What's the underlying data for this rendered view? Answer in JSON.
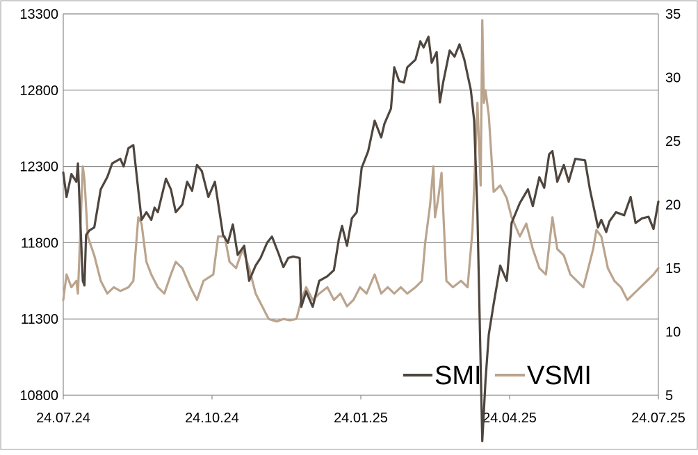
{
  "chart_data": {
    "type": "line",
    "title": "",
    "xlabel": "",
    "ylabel": "",
    "x_ticks": [
      "24.07.24",
      "24.10.24",
      "24.01.25",
      "24.04.25",
      "24.07.25"
    ],
    "x_range": [
      "2024-07-24",
      "2025-07-24"
    ],
    "y_left": {
      "range": [
        10800,
        13300
      ],
      "ticks": [
        "10800",
        "11300",
        "11800",
        "12300",
        "12800",
        "13300"
      ]
    },
    "y_right": {
      "range": [
        5,
        35
      ],
      "ticks": [
        "5",
        "10",
        "15",
        "20",
        "25",
        "30",
        "35"
      ]
    },
    "grid": true,
    "legend": "bottom-right",
    "colors": {
      "SMI": "#4e463e",
      "VSMI": "#bba48d"
    },
    "series": [
      {
        "name": "SMI",
        "axis": "left",
        "points": [
          [
            "2024-07-24",
            12260
          ],
          [
            "2024-07-26",
            12100
          ],
          [
            "2024-07-29",
            12250
          ],
          [
            "2024-08-01",
            12200
          ],
          [
            "2024-08-02",
            12320
          ],
          [
            "2024-08-05",
            11550
          ],
          [
            "2024-08-06",
            11520
          ],
          [
            "2024-08-07",
            11850
          ],
          [
            "2024-08-09",
            11880
          ],
          [
            "2024-08-12",
            11900
          ],
          [
            "2024-08-16",
            12150
          ],
          [
            "2024-08-20",
            12230
          ],
          [
            "2024-08-23",
            12320
          ],
          [
            "2024-08-28",
            12350
          ],
          [
            "2024-08-30",
            12300
          ],
          [
            "2024-09-02",
            12420
          ],
          [
            "2024-09-05",
            12440
          ],
          [
            "2024-09-10",
            11950
          ],
          [
            "2024-09-13",
            12000
          ],
          [
            "2024-09-16",
            11950
          ],
          [
            "2024-09-18",
            12030
          ],
          [
            "2024-09-20",
            12000
          ],
          [
            "2024-09-25",
            12220
          ],
          [
            "2024-09-28",
            12150
          ],
          [
            "2024-10-01",
            12000
          ],
          [
            "2024-10-05",
            12050
          ],
          [
            "2024-10-08",
            12200
          ],
          [
            "2024-10-11",
            12140
          ],
          [
            "2024-10-14",
            12310
          ],
          [
            "2024-10-17",
            12270
          ],
          [
            "2024-10-21",
            12100
          ],
          [
            "2024-10-25",
            12200
          ],
          [
            "2024-10-30",
            11850
          ],
          [
            "2024-11-02",
            11800
          ],
          [
            "2024-11-05",
            11920
          ],
          [
            "2024-11-08",
            11720
          ],
          [
            "2024-11-12",
            11780
          ],
          [
            "2024-11-15",
            11550
          ],
          [
            "2024-11-19",
            11650
          ],
          [
            "2024-11-22",
            11700
          ],
          [
            "2024-11-26",
            11800
          ],
          [
            "2024-11-29",
            11840
          ],
          [
            "2024-12-03",
            11730
          ],
          [
            "2024-12-06",
            11640
          ],
          [
            "2024-12-09",
            11700
          ],
          [
            "2024-12-12",
            11710
          ],
          [
            "2024-12-16",
            11700
          ],
          [
            "2024-12-17",
            11380
          ],
          [
            "2024-12-20",
            11480
          ],
          [
            "2024-12-24",
            11380
          ],
          [
            "2024-12-28",
            11550
          ],
          [
            "2025-01-02",
            11580
          ],
          [
            "2025-01-06",
            11620
          ],
          [
            "2025-01-09",
            11820
          ],
          [
            "2025-01-11",
            11910
          ],
          [
            "2025-01-14",
            11780
          ],
          [
            "2025-01-17",
            11960
          ],
          [
            "2025-01-20",
            12000
          ],
          [
            "2025-01-23",
            12290
          ],
          [
            "2025-01-27",
            12400
          ],
          [
            "2025-01-31",
            12600
          ],
          [
            "2025-02-04",
            12490
          ],
          [
            "2025-02-06",
            12580
          ],
          [
            "2025-02-10",
            12680
          ],
          [
            "2025-02-12",
            12950
          ],
          [
            "2025-02-15",
            12860
          ],
          [
            "2025-02-18",
            12850
          ],
          [
            "2025-02-20",
            12950
          ],
          [
            "2025-02-25",
            13000
          ],
          [
            "2025-02-28",
            13120
          ],
          [
            "2025-03-02",
            13080
          ],
          [
            "2025-03-05",
            13150
          ],
          [
            "2025-03-07",
            12980
          ],
          [
            "2025-03-10",
            13050
          ],
          [
            "2025-03-12",
            12720
          ],
          [
            "2025-03-14",
            12850
          ],
          [
            "2025-03-18",
            13060
          ],
          [
            "2025-03-21",
            13020
          ],
          [
            "2025-03-24",
            13100
          ],
          [
            "2025-03-27",
            13000
          ],
          [
            "2025-03-31",
            12800
          ],
          [
            "2025-04-02",
            12600
          ],
          [
            "2025-04-04",
            12000
          ],
          [
            "2025-04-07",
            10500
          ],
          [
            "2025-04-09",
            10900
          ],
          [
            "2025-04-11",
            11200
          ],
          [
            "2025-04-14",
            11400
          ],
          [
            "2025-04-18",
            11650
          ],
          [
            "2025-04-22",
            11550
          ],
          [
            "2025-04-25",
            11930
          ],
          [
            "2025-04-30",
            12060
          ],
          [
            "2025-05-05",
            12150
          ],
          [
            "2025-05-08",
            12040
          ],
          [
            "2025-05-12",
            12230
          ],
          [
            "2025-05-15",
            12160
          ],
          [
            "2025-05-18",
            12380
          ],
          [
            "2025-05-20",
            12400
          ],
          [
            "2025-05-23",
            12200
          ],
          [
            "2025-05-27",
            12310
          ],
          [
            "2025-05-30",
            12200
          ],
          [
            "2025-06-03",
            12350
          ],
          [
            "2025-06-09",
            12340
          ],
          [
            "2025-06-12",
            12150
          ],
          [
            "2025-06-17",
            11900
          ],
          [
            "2025-06-19",
            11950
          ],
          [
            "2025-06-22",
            11870
          ],
          [
            "2025-06-24",
            11940
          ],
          [
            "2025-06-28",
            12000
          ],
          [
            "2025-07-03",
            11980
          ],
          [
            "2025-07-07",
            12100
          ],
          [
            "2025-07-10",
            11930
          ],
          [
            "2025-07-14",
            11960
          ],
          [
            "2025-07-18",
            11970
          ],
          [
            "2025-07-21",
            11890
          ],
          [
            "2025-07-24",
            12070
          ]
        ]
      },
      {
        "name": "VSMI",
        "axis": "right",
        "points": [
          [
            "2024-07-24",
            12.5
          ],
          [
            "2024-07-26",
            14.5
          ],
          [
            "2024-07-29",
            13.5
          ],
          [
            "2024-08-01",
            14.0
          ],
          [
            "2024-08-02",
            13.0
          ],
          [
            "2024-08-05",
            23.0
          ],
          [
            "2024-08-06",
            22.0
          ],
          [
            "2024-08-08",
            17.5
          ],
          [
            "2024-08-12",
            16.0
          ],
          [
            "2024-08-16",
            14.0
          ],
          [
            "2024-08-20",
            13.0
          ],
          [
            "2024-08-24",
            13.5
          ],
          [
            "2024-08-28",
            13.2
          ],
          [
            "2024-09-02",
            13.5
          ],
          [
            "2024-09-05",
            14.0
          ],
          [
            "2024-09-08",
            19.0
          ],
          [
            "2024-09-10",
            18.5
          ],
          [
            "2024-09-13",
            15.5
          ],
          [
            "2024-09-16",
            14.5
          ],
          [
            "2024-09-20",
            13.5
          ],
          [
            "2024-09-24",
            13.0
          ],
          [
            "2024-09-28",
            14.5
          ],
          [
            "2024-10-01",
            15.5
          ],
          [
            "2024-10-05",
            15.0
          ],
          [
            "2024-10-10",
            13.5
          ],
          [
            "2024-10-14",
            12.5
          ],
          [
            "2024-10-18",
            14.0
          ],
          [
            "2024-10-24",
            14.5
          ],
          [
            "2024-10-27",
            17.5
          ],
          [
            "2024-10-31",
            17.5
          ],
          [
            "2024-11-03",
            15.5
          ],
          [
            "2024-11-07",
            15.0
          ],
          [
            "2024-11-11",
            16.5
          ],
          [
            "2024-11-15",
            15.0
          ],
          [
            "2024-11-19",
            13.0
          ],
          [
            "2024-11-23",
            12.0
          ],
          [
            "2024-11-27",
            11.0
          ],
          [
            "2024-12-02",
            10.8
          ],
          [
            "2024-12-06",
            11.0
          ],
          [
            "2024-12-10",
            10.9
          ],
          [
            "2024-12-14",
            11.0
          ],
          [
            "2024-12-17",
            12.5
          ],
          [
            "2024-12-20",
            13.5
          ],
          [
            "2024-12-24",
            12.5
          ],
          [
            "2024-12-28",
            13.0
          ],
          [
            "2025-01-02",
            13.5
          ],
          [
            "2025-01-06",
            12.5
          ],
          [
            "2025-01-10",
            13.0
          ],
          [
            "2025-01-14",
            12.0
          ],
          [
            "2025-01-18",
            12.5
          ],
          [
            "2025-01-22",
            13.5
          ],
          [
            "2025-01-26",
            13.0
          ],
          [
            "2025-01-31",
            14.5
          ],
          [
            "2025-02-04",
            13.0
          ],
          [
            "2025-02-08",
            13.5
          ],
          [
            "2025-02-12",
            13.0
          ],
          [
            "2025-02-16",
            13.5
          ],
          [
            "2025-02-20",
            13.0
          ],
          [
            "2025-02-25",
            13.5
          ],
          [
            "2025-03-01",
            14.0
          ],
          [
            "2025-03-03",
            17.0
          ],
          [
            "2025-03-06",
            20.0
          ],
          [
            "2025-03-08",
            23.0
          ],
          [
            "2025-03-09",
            19.0
          ],
          [
            "2025-03-11",
            20.5
          ],
          [
            "2025-03-13",
            22.5
          ],
          [
            "2025-03-16",
            14.0
          ],
          [
            "2025-03-20",
            13.5
          ],
          [
            "2025-03-25",
            14.0
          ],
          [
            "2025-03-29",
            13.5
          ],
          [
            "2025-04-01",
            18.0
          ],
          [
            "2025-04-04",
            28.0
          ],
          [
            "2025-04-06",
            21.5
          ],
          [
            "2025-04-07",
            34.5
          ],
          [
            "2025-04-08",
            28.0
          ],
          [
            "2025-04-09",
            29.0
          ],
          [
            "2025-04-11",
            27.0
          ],
          [
            "2025-04-14",
            21.0
          ],
          [
            "2025-04-18",
            21.5
          ],
          [
            "2025-04-22",
            20.5
          ],
          [
            "2025-04-25",
            19.0
          ],
          [
            "2025-04-30",
            17.5
          ],
          [
            "2025-05-04",
            18.5
          ],
          [
            "2025-05-08",
            16.5
          ],
          [
            "2025-05-12",
            15.0
          ],
          [
            "2025-05-16",
            14.5
          ],
          [
            "2025-05-20",
            19.0
          ],
          [
            "2025-05-23",
            16.5
          ],
          [
            "2025-05-27",
            16.0
          ],
          [
            "2025-05-31",
            14.5
          ],
          [
            "2025-06-04",
            14.0
          ],
          [
            "2025-06-08",
            13.5
          ],
          [
            "2025-06-11",
            15.0
          ],
          [
            "2025-06-14",
            16.5
          ],
          [
            "2025-06-16",
            18.0
          ],
          [
            "2025-06-19",
            17.5
          ],
          [
            "2025-06-23",
            15.0
          ],
          [
            "2025-06-27",
            14.0
          ],
          [
            "2025-07-01",
            13.5
          ],
          [
            "2025-07-05",
            12.5
          ],
          [
            "2025-07-09",
            13.0
          ],
          [
            "2025-07-13",
            13.5
          ],
          [
            "2025-07-17",
            14.0
          ],
          [
            "2025-07-21",
            14.5
          ],
          [
            "2025-07-24",
            15.0
          ]
        ]
      }
    ]
  }
}
